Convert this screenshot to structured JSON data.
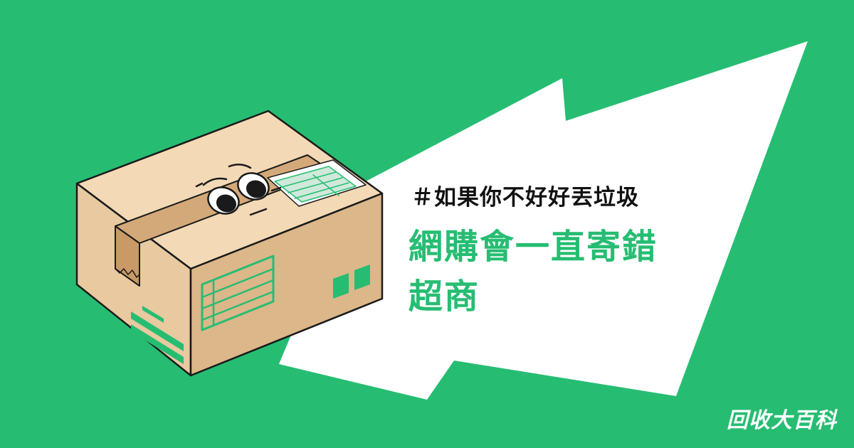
{
  "hashtag": "＃如果你不好好丟垃圾",
  "headline": {
    "line1": "網購會一直寄錯",
    "line2": "超商"
  },
  "brand": "回收大百科",
  "colors": {
    "background": "#26bd72",
    "bubble": "#ffffff",
    "accent_text": "#26bd72",
    "box_front": "#e8c9a0",
    "box_top": "#f3d9b5",
    "box_side": "#dcb789",
    "outline": "#1a1a1a"
  },
  "icons": {
    "box_character": "cardboard-box-with-eyes",
    "speech_bubble": "jagged-speech-bubble"
  }
}
